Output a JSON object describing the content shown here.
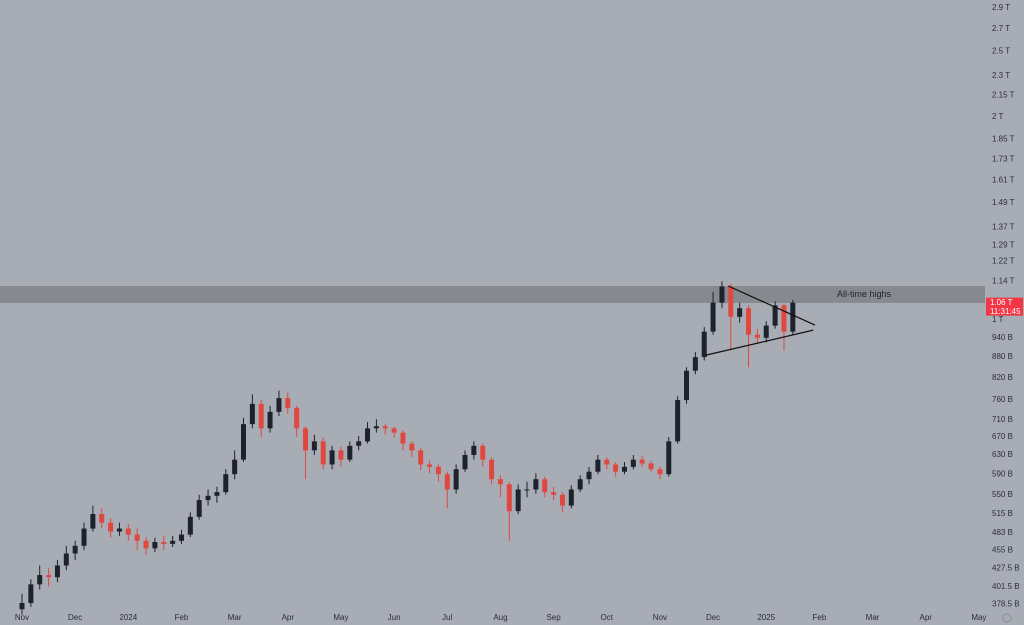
{
  "chart_data": {
    "type": "candlestick",
    "y_scale": "log",
    "up_color": "#1e222d",
    "down_color": "#e0483f",
    "categories": [
      "Nov",
      null,
      null,
      null,
      null,
      null,
      "Dec",
      null,
      null,
      null,
      null,
      null,
      "2024",
      null,
      null,
      null,
      null,
      null,
      "Feb",
      null,
      null,
      null,
      null,
      null,
      "Mar",
      null,
      null,
      null,
      null,
      null,
      "Apr",
      null,
      null,
      null,
      null,
      null,
      "May",
      null,
      null,
      null,
      null,
      null,
      "Jun",
      null,
      null,
      null,
      null,
      null,
      "Jul",
      null,
      null,
      null,
      null,
      null,
      "Aug",
      null,
      null,
      null,
      null,
      null,
      "Sep",
      null,
      null,
      null,
      null,
      null,
      "Oct",
      null,
      null,
      null,
      null,
      null,
      "Nov",
      null,
      null,
      null,
      null,
      null,
      "Dec",
      null,
      null,
      null,
      null,
      null,
      "2025",
      null,
      null,
      null,
      null,
      null,
      "Feb",
      null,
      null,
      null,
      null,
      null,
      "Mar",
      null,
      null,
      null,
      null,
      null,
      "Apr",
      null,
      null,
      null,
      null,
      null,
      "May"
    ],
    "ohlc": [
      [
        372,
        392,
        365,
        380
      ],
      [
        380,
        412,
        375,
        405
      ],
      [
        405,
        432,
        398,
        418
      ],
      [
        418,
        428,
        402,
        415
      ],
      [
        415,
        440,
        408,
        432
      ],
      [
        432,
        462,
        425,
        450
      ],
      [
        450,
        470,
        440,
        462
      ],
      [
        462,
        500,
        455,
        490
      ],
      [
        490,
        530,
        485,
        515
      ],
      [
        515,
        525,
        490,
        500
      ],
      [
        500,
        508,
        475,
        485
      ],
      [
        485,
        500,
        478,
        490
      ],
      [
        490,
        498,
        470,
        480
      ],
      [
        480,
        490,
        455,
        470
      ],
      [
        470,
        476,
        448,
        458
      ],
      [
        458,
        475,
        452,
        468
      ],
      [
        468,
        478,
        455,
        465
      ],
      [
        465,
        478,
        460,
        470
      ],
      [
        470,
        488,
        465,
        480
      ],
      [
        480,
        518,
        476,
        510
      ],
      [
        510,
        550,
        505,
        540
      ],
      [
        540,
        560,
        530,
        548
      ],
      [
        548,
        565,
        535,
        555
      ],
      [
        555,
        600,
        550,
        590
      ],
      [
        590,
        640,
        580,
        620
      ],
      [
        620,
        715,
        615,
        700
      ],
      [
        700,
        775,
        690,
        750
      ],
      [
        750,
        760,
        670,
        690
      ],
      [
        690,
        745,
        680,
        730
      ],
      [
        730,
        785,
        720,
        765
      ],
      [
        765,
        780,
        725,
        740
      ],
      [
        740,
        745,
        670,
        690
      ],
      [
        690,
        695,
        580,
        640
      ],
      [
        640,
        675,
        630,
        660
      ],
      [
        660,
        668,
        600,
        610
      ],
      [
        610,
        650,
        600,
        640
      ],
      [
        640,
        648,
        605,
        620
      ],
      [
        620,
        660,
        615,
        650
      ],
      [
        650,
        672,
        640,
        660
      ],
      [
        660,
        705,
        655,
        690
      ],
      [
        690,
        712,
        680,
        695
      ],
      [
        695,
        700,
        675,
        690
      ],
      [
        690,
        695,
        668,
        680
      ],
      [
        680,
        685,
        640,
        655
      ],
      [
        655,
        660,
        625,
        640
      ],
      [
        640,
        645,
        598,
        610
      ],
      [
        610,
        618,
        592,
        605
      ],
      [
        605,
        610,
        575,
        590
      ],
      [
        590,
        595,
        525,
        560
      ],
      [
        560,
        610,
        552,
        600
      ],
      [
        600,
        640,
        595,
        630
      ],
      [
        630,
        660,
        620,
        650
      ],
      [
        650,
        655,
        605,
        620
      ],
      [
        620,
        625,
        570,
        580
      ],
      [
        580,
        588,
        545,
        570
      ],
      [
        570,
        575,
        470,
        520
      ],
      [
        520,
        570,
        515,
        560
      ],
      [
        560,
        575,
        545,
        560
      ],
      [
        560,
        592,
        552,
        580
      ],
      [
        580,
        585,
        545,
        555
      ],
      [
        555,
        565,
        540,
        550
      ],
      [
        550,
        555,
        518,
        530
      ],
      [
        530,
        568,
        525,
        560
      ],
      [
        560,
        588,
        555,
        580
      ],
      [
        580,
        605,
        570,
        595
      ],
      [
        595,
        630,
        590,
        620
      ],
      [
        620,
        625,
        600,
        610
      ],
      [
        610,
        615,
        585,
        595
      ],
      [
        595,
        615,
        590,
        605
      ],
      [
        605,
        630,
        600,
        620
      ],
      [
        620,
        628,
        605,
        612
      ],
      [
        612,
        618,
        595,
        600
      ],
      [
        600,
        605,
        580,
        590
      ],
      [
        590,
        670,
        585,
        660
      ],
      [
        660,
        770,
        655,
        760
      ],
      [
        760,
        850,
        750,
        840
      ],
      [
        840,
        895,
        830,
        880
      ],
      [
        880,
        975,
        870,
        960
      ],
      [
        960,
        1100,
        950,
        1060
      ],
      [
        1060,
        1140,
        1040,
        1120
      ],
      [
        1120,
        1130,
        900,
        1010
      ],
      [
        1010,
        1060,
        990,
        1040
      ],
      [
        1040,
        1050,
        850,
        950
      ],
      [
        950,
        970,
        920,
        940
      ],
      [
        940,
        995,
        925,
        980
      ],
      [
        980,
        1065,
        970,
        1050
      ],
      [
        1050,
        1055,
        900,
        960
      ],
      [
        960,
        1070,
        950,
        1060
      ],
      null,
      null,
      null,
      null,
      null,
      null,
      null,
      null,
      null,
      null,
      null,
      null,
      null,
      null,
      null,
      null,
      null,
      null,
      null,
      null,
      null
    ],
    "ylim": [
      368.5,
      2980
    ],
    "yticks": [
      {
        "value": 2900,
        "label": "2.9 T"
      },
      {
        "value": 2700,
        "label": "2.7 T"
      },
      {
        "value": 2500,
        "label": "2.5 T"
      },
      {
        "value": 2300,
        "label": "2.3 T"
      },
      {
        "value": 2150,
        "label": "2.15 T"
      },
      {
        "value": 2000,
        "label": "2 T"
      },
      {
        "value": 1850,
        "label": "1.85 T"
      },
      {
        "value": 1730,
        "label": "1.73 T"
      },
      {
        "value": 1610,
        "label": "1.61 T"
      },
      {
        "value": 1490,
        "label": "1.49 T"
      },
      {
        "value": 1370,
        "label": "1.37 T"
      },
      {
        "value": 1290,
        "label": "1.29 T"
      },
      {
        "value": 1220,
        "label": "1.22 T"
      },
      {
        "value": 1140,
        "label": "1.14 T"
      },
      {
        "value": 1000,
        "label": "1 T"
      },
      {
        "value": 940,
        "label": "940 B"
      },
      {
        "value": 880,
        "label": "880 B"
      },
      {
        "value": 820,
        "label": "820 B"
      },
      {
        "value": 760,
        "label": "760 B"
      },
      {
        "value": 710,
        "label": "710 B"
      },
      {
        "value": 670,
        "label": "670 B"
      },
      {
        "value": 630,
        "label": "630 B"
      },
      {
        "value": 590,
        "label": "590 B"
      },
      {
        "value": 550,
        "label": "550 B"
      },
      {
        "value": 515,
        "label": "515 B"
      },
      {
        "value": 483,
        "label": "483 B"
      },
      {
        "value": 455,
        "label": "455 B"
      },
      {
        "value": 427.5,
        "label": "427.5 B"
      },
      {
        "value": 401.5,
        "label": "401.5 B"
      },
      {
        "value": 378.5,
        "label": "378.5 B"
      }
    ],
    "zone": {
      "label": "All-time highs",
      "range": [
        1059,
        1122
      ]
    },
    "trendlines": [
      {
        "x": [
          79.7,
          89.5
        ],
        "values": [
          1122,
          982
        ]
      },
      {
        "x": [
          77.2,
          89.3
        ],
        "values": [
          886,
          965
        ]
      }
    ],
    "last_price": {
      "value": 1060,
      "label": "1.06 T"
    },
    "countdown": "11:31:45"
  }
}
